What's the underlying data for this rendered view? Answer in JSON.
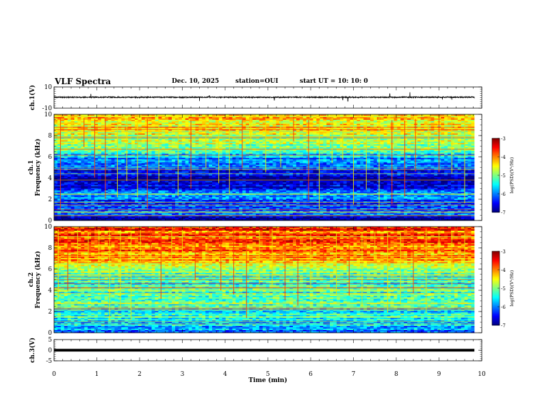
{
  "header": {
    "title": "VLF Spectra",
    "date": "Dec. 10, 2025",
    "station": "station=OUI",
    "start_ut": "start  UT =   10: 10: 0"
  },
  "chart_data": [
    {
      "type": "line",
      "panel": "ch1-waveform",
      "ylabel": "ch.1(V)",
      "ylim": [
        -10,
        10
      ],
      "yticks": [
        "10",
        "-10"
      ],
      "baseline": 0.3,
      "noise": 0.5,
      "spikes": [
        {
          "t": 0.86,
          "v": 3.5
        },
        {
          "t": 1.5,
          "v": 1.5
        },
        {
          "t": 3.4,
          "v": -3.2
        },
        {
          "t": 3.63,
          "v": 2.0
        },
        {
          "t": 5.15,
          "v": -2.4
        },
        {
          "t": 6.75,
          "v": -2.1
        },
        {
          "t": 6.87,
          "v": -3.4
        },
        {
          "t": 7.85,
          "v": 3.6
        },
        {
          "t": 8.32,
          "v": 5.0
        },
        {
          "t": 8.98,
          "v": 1.6
        },
        {
          "t": 9.08,
          "v": -1.8
        },
        {
          "t": 9.3,
          "v": -2.0
        }
      ]
    },
    {
      "type": "heatmap",
      "panel": "ch1-spectrogram",
      "ylabel": "ch.1 Frequency (kHz)",
      "ylim": [
        0,
        10
      ],
      "yticks": [
        "0",
        "2",
        "4",
        "6",
        "8",
        "10"
      ],
      "zlim": [
        -7,
        -3
      ],
      "colorbar_label": "log(PSD)(V²/Hz)",
      "colorbar_ticks": [
        "-3",
        "-4",
        "-5",
        "-6",
        "-7"
      ],
      "bands_khz_log_psd": [
        [
          0.0,
          -6.8
        ],
        [
          0.8,
          -6.0
        ],
        [
          1.6,
          -6.3
        ],
        [
          2.3,
          -5.7
        ],
        [
          2.9,
          -6.6
        ],
        [
          3.6,
          -6.9
        ],
        [
          4.5,
          -6.6
        ],
        [
          5.3,
          -6.2
        ],
        [
          6.3,
          -5.5
        ],
        [
          7.0,
          -4.9
        ],
        [
          8.0,
          -4.7
        ],
        [
          9.0,
          -4.5
        ],
        [
          10.0,
          -4.5
        ]
      ],
      "spheric_times_min": [
        0.15,
        0.42,
        0.7,
        0.95,
        1.2,
        1.48,
        1.7,
        1.95,
        2.18,
        2.45,
        2.9,
        3.2,
        3.55,
        3.85,
        4.1,
        4.4,
        4.6,
        4.95,
        5.3,
        5.6,
        5.95,
        6.2,
        6.5,
        6.75,
        7.0,
        7.3,
        7.6,
        7.9,
        8.2,
        8.45,
        8.75,
        9.0,
        9.3,
        9.6
      ]
    },
    {
      "type": "heatmap",
      "panel": "ch2-spectrogram",
      "ylabel": "ch.2 Frequency (kHz)",
      "ylim": [
        0,
        10
      ],
      "yticks": [
        "0",
        "2",
        "4",
        "6",
        "8",
        "10"
      ],
      "zlim": [
        -7,
        -3
      ],
      "colorbar_label": "log(PSD)(V²/Hz)",
      "colorbar_ticks": [
        "-3",
        "-4",
        "-5",
        "-6",
        "-7"
      ],
      "bands_khz_log_psd": [
        [
          0.0,
          -6.0
        ],
        [
          1.0,
          -5.6
        ],
        [
          2.0,
          -5.4
        ],
        [
          3.0,
          -5.1
        ],
        [
          4.0,
          -5.4
        ],
        [
          5.0,
          -5.3
        ],
        [
          6.0,
          -4.9
        ],
        [
          6.8,
          -4.3
        ],
        [
          8.0,
          -3.9
        ],
        [
          9.0,
          -3.8
        ],
        [
          10.0,
          -3.7
        ]
      ],
      "spheric_times_min": [
        0.1,
        0.32,
        0.55,
        0.8,
        1.05,
        1.3,
        1.55,
        1.8,
        2.02,
        2.25,
        2.5,
        2.75,
        3.0,
        3.3,
        3.6,
        3.9,
        4.2,
        4.5,
        4.8,
        5.1,
        5.4,
        5.7,
        6.0,
        6.3,
        6.6,
        6.9,
        7.2,
        7.5,
        7.8,
        8.1,
        8.4,
        8.7,
        9.0,
        9.3,
        9.6
      ]
    },
    {
      "type": "line",
      "panel": "ch3-waveform",
      "ylabel": "ch.3(V)",
      "ylim": [
        -5,
        5
      ],
      "yticks": [
        "5",
        "0",
        "-5"
      ],
      "baseline": 0.0,
      "noise": 0.0,
      "spikes": []
    }
  ],
  "xaxis": {
    "label": "Time (min)",
    "xlim": [
      0,
      10
    ],
    "ticks": [
      "0",
      "1",
      "2",
      "3",
      "4",
      "5",
      "6",
      "7",
      "8",
      "9",
      "10"
    ],
    "data_end_min": 9.83
  }
}
